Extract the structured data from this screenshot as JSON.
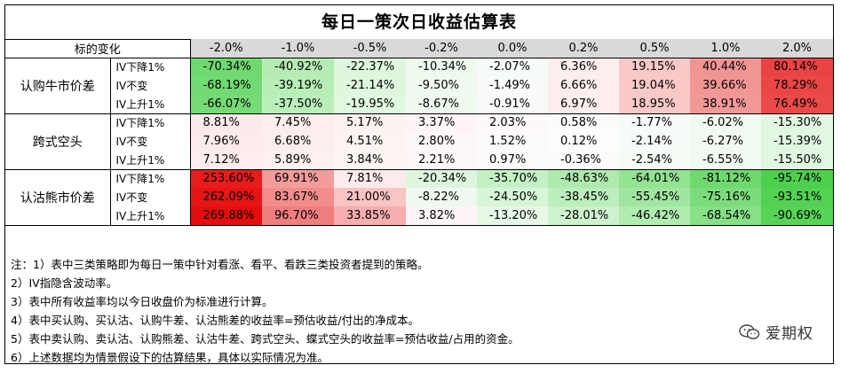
{
  "title": "每日一策次日收益估算表",
  "header": {
    "corner": "标的变化",
    "columns": [
      "-2.0%",
      "-1.0%",
      "-0.5%",
      "-0.2%",
      "0.0%",
      "0.2%",
      "0.5%",
      "1.0%",
      "2.0%"
    ]
  },
  "groups": [
    {
      "name": "认购牛市价差",
      "rows": [
        {
          "label": "IV下降1%",
          "values": [
            "-70.34%",
            "-40.92%",
            "-22.37%",
            "-10.34%",
            "-2.07%",
            "6.36%",
            "19.15%",
            "40.44%",
            "80.14%"
          ],
          "colors": [
            "#6fd96f",
            "#b5ecb5",
            "#def6de",
            "#eef9ee",
            "#f7fbf7",
            "#fdeeee",
            "#f9c8c8",
            "#f19494",
            "#ea4343"
          ]
        },
        {
          "label": "IV不变",
          "values": [
            "-68.19%",
            "-39.19%",
            "-21.14%",
            "-9.50%",
            "-1.49%",
            "6.66%",
            "19.04%",
            "39.66%",
            "78.29%"
          ],
          "colors": [
            "#72da72",
            "#b7edb7",
            "#dff6df",
            "#eff9ef",
            "#f8fbf8",
            "#fdeded",
            "#f9c8c8",
            "#f19696",
            "#eb4646"
          ]
        },
        {
          "label": "IV上升1%",
          "values": [
            "-66.07%",
            "-37.50%",
            "-19.95%",
            "-8.67%",
            "-0.91%",
            "6.97%",
            "18.95%",
            "38.91%",
            "76.49%"
          ],
          "colors": [
            "#76db76",
            "#baeeba",
            "#e0f7e0",
            "#effaef",
            "#f9fbf9",
            "#fdeded",
            "#f9c9c9",
            "#f19898",
            "#eb4a4a"
          ]
        }
      ]
    },
    {
      "name": "跨式空头",
      "rows": [
        {
          "label": "IV下降1%",
          "values": [
            "8.81%",
            "7.45%",
            "5.17%",
            "3.37%",
            "2.03%",
            "0.58%",
            "-1.77%",
            "-6.02%",
            "-15.30%"
          ],
          "colors": [
            "#fde9e9",
            "#fdeded",
            "#fdf2f2",
            "#fdf5f5",
            "#fdf9f9",
            "#fdfcfc",
            "#f7fbf7",
            "#f0faf0",
            "#e2f7e2"
          ]
        },
        {
          "label": "IV不变",
          "values": [
            "7.96%",
            "6.68%",
            "4.51%",
            "2.80%",
            "1.52%",
            "0.12%",
            "-2.14%",
            "-6.27%",
            "-15.39%"
          ],
          "colors": [
            "#fdebeb",
            "#fdeeee",
            "#fdf3f3",
            "#fdf7f7",
            "#fdfafa",
            "#fdfdfd",
            "#f7fbf7",
            "#f0faf0",
            "#e2f7e2"
          ]
        },
        {
          "label": "IV上升1%",
          "values": [
            "7.12%",
            "5.89%",
            "3.84%",
            "2.21%",
            "0.97%",
            "-0.36%",
            "-2.54%",
            "-6.55%",
            "-15.50%"
          ],
          "colors": [
            "#fdeded",
            "#fdf0f0",
            "#fdf4f4",
            "#fdf8f8",
            "#fdfbfb",
            "#fbfdfb",
            "#f6fbf6",
            "#f0faf0",
            "#e2f7e2"
          ]
        }
      ]
    },
    {
      "name": "认沽熊市价差",
      "rows": [
        {
          "label": "IV下降1%",
          "values": [
            "253.60%",
            "69.91%",
            "7.81%",
            "-20.34%",
            "-35.70%",
            "-48.63%",
            "-64.01%",
            "-81.12%",
            "-95.74%"
          ],
          "colors": [
            "#e81c1c",
            "#f49c9c",
            "#fdebeb",
            "#def6de",
            "#c4f0c4",
            "#aeeaae",
            "#93e393",
            "#6fd96f",
            "#4dd04d"
          ]
        },
        {
          "label": "IV不变",
          "values": [
            "262.09%",
            "83.67%",
            "21.00%",
            "-8.22%",
            "-24.50%",
            "-38.45%",
            "-55.45%",
            "-75.16%",
            "-93.51%"
          ],
          "colors": [
            "#e61414",
            "#f38d8d",
            "#f9c4c4",
            "#eff9ef",
            "#d7f5d7",
            "#bdeebd",
            "#a0e6a0",
            "#7cdc7c",
            "#52d152"
          ]
        },
        {
          "label": "IV上升1%",
          "values": [
            "269.88%",
            "96.70%",
            "33.85%",
            "3.82%",
            "-13.20%",
            "-28.01%",
            "-46.42%",
            "-68.54%",
            "-90.69%"
          ],
          "colors": [
            "#e50d0d",
            "#f07e7e",
            "#f6aeae",
            "#fdf5f5",
            "#e7f8e7",
            "#cef2ce",
            "#b0ebb0",
            "#87df87",
            "#58d358"
          ]
        }
      ]
    }
  ],
  "notes": [
    "注：1）表中三类策略即为每日一策中针对看涨、看平、看跌三类投资者提到的策略。",
    "2）IV指隐含波动率。",
    "3）表中所有收益率均以今日收盘价为标准进行计算。",
    "4）表中买认购、买认沽、认购牛差、认沽熊差的收益率=预估收益/付出的净成本。",
    "5）表中卖认购、卖认沽、认购熊差、认沽牛差、跨式空头、蝶式空头的收益率=预估收益/占用的资金。",
    "6）上述数据均为情景假设下的估算结果，具体以实际情况为准。"
  ],
  "brand": {
    "name": "爱期权",
    "icon": "wechat-icon"
  }
}
